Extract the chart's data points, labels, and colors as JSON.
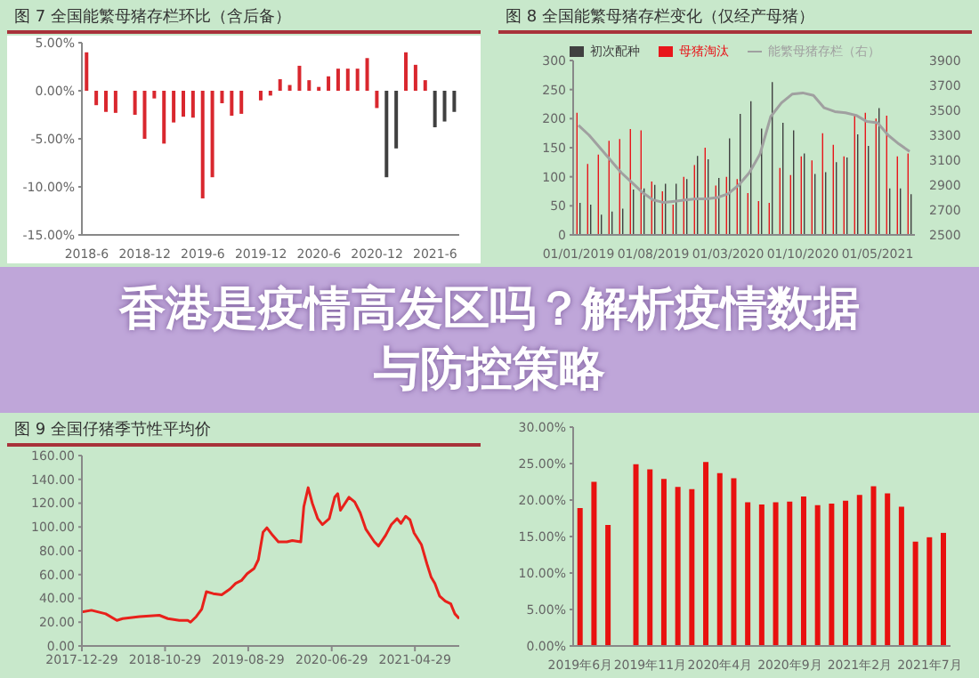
{
  "chart_data": [
    {
      "type": "bar",
      "title": "图 7 全国能繁母猪存栏环比（含后备）",
      "categories": [
        "2018-6",
        null,
        null,
        null,
        null,
        null,
        "2018-12",
        null,
        null,
        null,
        null,
        null,
        "2019-6",
        null,
        null,
        null,
        null,
        null,
        "2019-12",
        null,
        null,
        null,
        null,
        null,
        "2020-6",
        null,
        null,
        null,
        null,
        null,
        "2020-12",
        null,
        null,
        null,
        null,
        null,
        "2021-6",
        null,
        null
      ],
      "values": [
        4.0,
        -1.5,
        -2.2,
        -2.3,
        null,
        -2.5,
        -5.0,
        -0.8,
        -5.5,
        -3.3,
        -2.7,
        -2.8,
        -11.2,
        -9.0,
        -1.3,
        -2.6,
        -2.4,
        null,
        -1.0,
        -0.5,
        1.2,
        0.6,
        2.6,
        1.1,
        0.4,
        1.5,
        2.3,
        2.3,
        2.3,
        3.4,
        -1.8,
        -9.0,
        -6.0,
        4.0,
        2.7,
        1.1,
        -3.8,
        -3.2,
        -2.2
      ],
      "colors": [
        "#d9272e",
        "#d9272e",
        "#d9272e",
        "#d9272e",
        "#d9272e",
        "#d9272e",
        "#d9272e",
        "#d9272e",
        "#d9272e",
        "#d9272e",
        "#d9272e",
        "#d9272e",
        "#d9272e",
        "#d9272e",
        "#d9272e",
        "#d9272e",
        "#d9272e",
        "#d9272e",
        "#d9272e",
        "#d9272e",
        "#d9272e",
        "#d9272e",
        "#d9272e",
        "#d9272e",
        "#d9272e",
        "#d9272e",
        "#d9272e",
        "#d9272e",
        "#d9272e",
        "#d9272e",
        "#d9272e",
        "#404040",
        "#404040",
        "#d9272e",
        "#d9272e",
        "#d9272e",
        "#404040",
        "#404040",
        "#404040"
      ],
      "ylim": [
        -15,
        5
      ],
      "yticks": [
        {
          "value": -15,
          "label": "-15.00%"
        },
        {
          "value": -10,
          "label": "-10.00%"
        },
        {
          "value": -5,
          "label": "-5.00%"
        },
        {
          "value": 0,
          "label": "0.00%"
        },
        {
          "value": 5,
          "label": "5.00%"
        }
      ]
    },
    {
      "type": "bar",
      "title": "图 8 全国能繁母猪存栏变化（仅经产母猪）",
      "categories": [
        "01/01/2019",
        null,
        null,
        null,
        null,
        null,
        null,
        "01/08/2019",
        null,
        null,
        null,
        null,
        null,
        null,
        "01/03/2020",
        null,
        null,
        null,
        null,
        null,
        null,
        "01/10/2020",
        null,
        null,
        null,
        null,
        null,
        null,
        "01/05/2021",
        null,
        null,
        null
      ],
      "series": [
        {
          "name": "母猪淘汰",
          "color": "#e8161b",
          "values": [
            210,
            122,
            138,
            162,
            165,
            182,
            180,
            92,
            75,
            52,
            100,
            120,
            150,
            85,
            100,
            96,
            72,
            58,
            55,
            115,
            103,
            135,
            128,
            175,
            155,
            135,
            205,
            210,
            200,
            205,
            135,
            140
          ]
        },
        {
          "name": "初次配种",
          "color": "#404040",
          "values": [
            55,
            52,
            35,
            40,
            45,
            78,
            80,
            86,
            88,
            88,
            96,
            136,
            130,
            98,
            166,
            208,
            230,
            183,
            263,
            193,
            180,
            140,
            105,
            108,
            125,
            133,
            173,
            153,
            218,
            80,
            80,
            70
          ]
        },
        {
          "name": "能繁母猪存栏（右）",
          "type": "line",
          "axis": "y2",
          "color": "#a0a0a0",
          "values": [
            3380,
            3300,
            3200,
            3100,
            3000,
            2920,
            2840,
            2780,
            2760,
            2770,
            2780,
            2790,
            2790,
            2800,
            2830,
            2900,
            3000,
            3150,
            3450,
            3560,
            3630,
            3640,
            3620,
            3520,
            3490,
            3480,
            3460,
            3410,
            3400,
            3300,
            3230,
            3170
          ]
        }
      ],
      "ylim": [
        0,
        300
      ],
      "yticks": [
        0,
        50,
        100,
        150,
        200,
        250,
        300
      ],
      "y2lim": [
        2500,
        3900
      ],
      "y2ticks": [
        2500,
        2700,
        2900,
        3100,
        3300,
        3500,
        3700,
        3900
      ],
      "legend": "top",
      "marker": "none"
    },
    {
      "type": "other",
      "title": "香港是疫情高发区吗？解析疫情数据与防控策略"
    },
    {
      "type": "line",
      "title": "图 9 全国仔猪季节性平均价",
      "color": "#e8211b",
      "marker": "none",
      "x": [
        "2017-12-29",
        "2018-02-02",
        "2018-03-26",
        "2018-05-06",
        "2018-05-27",
        "2018-07-28",
        "2018-10-08",
        "2018-11-08",
        "2018-12-20",
        "2019-01-20",
        "2019-01-30",
        "2019-02-20",
        "2019-03-12",
        "2019-03-29",
        "2019-04-23",
        "2019-05-24",
        "2019-06-24",
        "2019-07-14",
        "2019-08-04",
        "2019-08-25",
        "2019-09-19",
        "2019-10-05",
        "2019-10-22",
        "2019-11-05",
        "2019-11-26",
        "2019-12-17",
        "2020-01-17",
        "2020-02-06",
        "2020-03-08",
        "2020-03-19",
        "2020-04-04",
        "2020-04-19",
        "2020-05-09",
        "2020-05-26",
        "2020-06-20",
        "2020-07-10",
        "2020-07-21",
        "2020-07-31",
        "2020-08-31",
        "2020-09-21",
        "2020-10-11",
        "2020-11-01",
        "2020-12-02",
        "2020-12-17",
        "2021-01-12",
        "2021-02-02",
        "2021-02-23",
        "2021-03-09",
        "2021-03-26",
        "2021-04-11",
        "2021-04-26",
        "2021-05-23",
        "2021-06-12",
        "2021-06-27",
        "2021-07-11",
        "2021-07-28",
        "2021-08-18",
        "2021-09-07",
        "2021-09-22",
        "2021-10-08"
      ],
      "values": [
        28.5,
        30,
        27,
        21.5,
        23,
        24.7,
        25.8,
        23,
        21.5,
        21.5,
        20,
        24.7,
        31,
        45.6,
        44,
        43,
        48,
        52.6,
        55,
        60.7,
        65,
        72.5,
        95.6,
        99.3,
        93,
        87.5,
        87.5,
        88.6,
        87.5,
        117,
        133,
        120,
        107,
        102,
        107,
        125,
        128,
        114,
        125,
        121,
        112,
        98,
        87.5,
        84,
        93,
        102,
        107,
        103,
        109,
        106,
        95,
        85,
        69,
        58,
        52.6,
        42,
        37.6,
        35.4,
        27,
        23
      ],
      "xlim": [
        "2017-12-29",
        "2021-10-08"
      ],
      "xticks": [
        "2017-12-29",
        "2018-10-29",
        "2019-08-29",
        "2020-06-29",
        "2021-04-29"
      ],
      "ylim": [
        0,
        160
      ],
      "yticks": [
        {
          "value": 0,
          "label": "0.00"
        },
        {
          "value": 20,
          "label": "20.00"
        },
        {
          "value": 40,
          "label": "40.00"
        },
        {
          "value": 60,
          "label": "60.00"
        },
        {
          "value": 80,
          "label": "80.00"
        },
        {
          "value": 100,
          "label": "100.00"
        },
        {
          "value": 120,
          "label": "120.00"
        },
        {
          "value": 140,
          "label": "140.00"
        },
        {
          "value": 160,
          "label": "160.00"
        }
      ]
    },
    {
      "type": "bar",
      "color": "#e8110f",
      "categories": [
        "2019年6月",
        null,
        null,
        null,
        null,
        "2019年11月",
        null,
        null,
        null,
        null,
        "2020年4月",
        null,
        null,
        null,
        null,
        "2020年9月",
        null,
        null,
        null,
        null,
        "2021年2月",
        null,
        null,
        null,
        null,
        "2021年7月",
        null
      ],
      "values": [
        18.9,
        22.5,
        16.6,
        null,
        24.9,
        24.2,
        22.9,
        21.8,
        21.5,
        25.2,
        23.7,
        23.0,
        19.7,
        19.4,
        19.7,
        19.8,
        20.5,
        19.3,
        19.5,
        19.9,
        20.7,
        21.9,
        20.9,
        19.1,
        14.3,
        14.9,
        15.5
      ],
      "ylim": [
        0,
        30
      ],
      "yticks": [
        {
          "value": 0,
          "label": "0.00%"
        },
        {
          "value": 5,
          "label": "5.00%"
        },
        {
          "value": 10,
          "label": "10.00%"
        },
        {
          "value": 15,
          "label": "15.00%"
        },
        {
          "value": 20,
          "label": "20.00%"
        },
        {
          "value": 25,
          "label": "25.00%"
        },
        {
          "value": 30,
          "label": "30.00%"
        }
      ]
    }
  ]
}
